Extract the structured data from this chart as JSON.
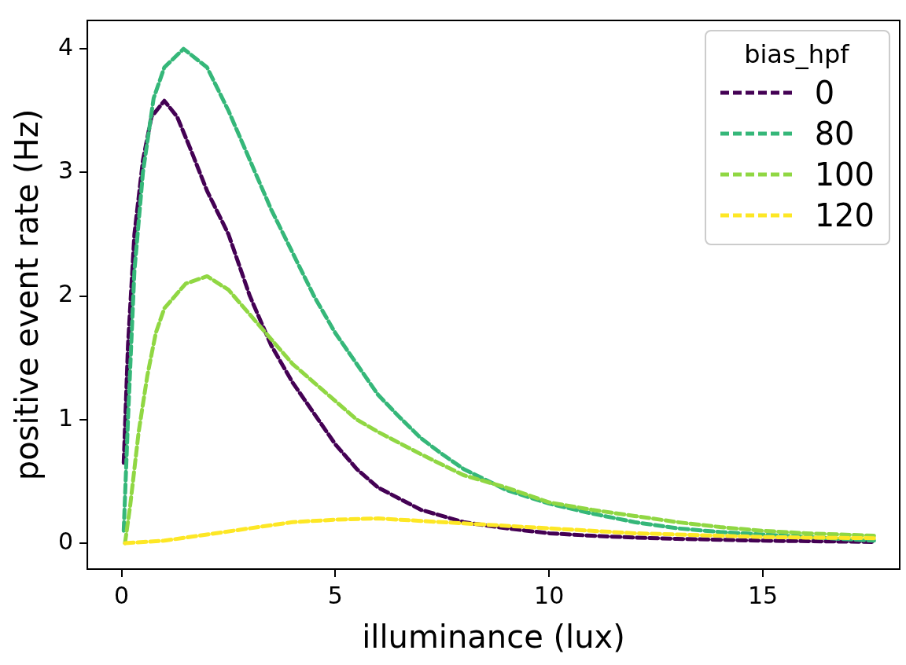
{
  "chart_data": {
    "type": "line",
    "xlabel": "illuminance (lux)",
    "ylabel": "positive event rate (Hz)",
    "legend_title": "bias_hpf",
    "legend": "top right",
    "grid": false,
    "marker": "none",
    "line_style": "dashed",
    "xlim": [
      -0.8,
      18.2
    ],
    "xticks": [
      0,
      5,
      10,
      15
    ],
    "ylim": [
      -0.21,
      4.23
    ],
    "yticks": [
      0,
      1,
      2,
      3,
      4
    ],
    "series": [
      {
        "name": "0",
        "color": "#440154",
        "x": [
          0.05,
          0.15,
          0.3,
          0.5,
          0.7,
          1.0,
          1.3,
          1.6,
          2.0,
          2.5,
          3.0,
          3.5,
          4.0,
          4.5,
          5.0,
          5.5,
          6.0,
          6.5,
          7.0,
          8.0,
          9.0,
          10,
          11,
          12,
          13,
          15,
          17.6
        ],
        "values": [
          0.65,
          1.6,
          2.5,
          3.1,
          3.45,
          3.58,
          3.45,
          3.2,
          2.85,
          2.5,
          2.0,
          1.6,
          1.3,
          1.05,
          0.8,
          0.6,
          0.45,
          0.36,
          0.27,
          0.17,
          0.12,
          0.08,
          0.06,
          0.045,
          0.035,
          0.02,
          0.01
        ]
      },
      {
        "name": "80",
        "color": "#35b779",
        "x": [
          0.05,
          0.15,
          0.3,
          0.5,
          0.75,
          1.0,
          1.45,
          2,
          2.5,
          3,
          3.5,
          4,
          4.5,
          5,
          5.5,
          6,
          6.5,
          7,
          7.5,
          8,
          9,
          10,
          11,
          12,
          13,
          14,
          15,
          16,
          17.6
        ],
        "values": [
          0.1,
          1.0,
          2.2,
          3.0,
          3.6,
          3.85,
          4.0,
          3.85,
          3.5,
          3.1,
          2.7,
          2.35,
          2.0,
          1.7,
          1.45,
          1.2,
          1.02,
          0.85,
          0.72,
          0.6,
          0.43,
          0.32,
          0.24,
          0.17,
          0.12,
          0.09,
          0.07,
          0.05,
          0.02
        ]
      },
      {
        "name": "100",
        "color": "#90d743",
        "x": [
          0.08,
          0.2,
          0.4,
          0.6,
          0.8,
          1.0,
          1.5,
          2.0,
          2.5,
          3,
          3.5,
          4,
          4.5,
          5,
          5.5,
          6,
          7,
          8,
          9,
          10,
          11,
          12,
          13,
          14,
          15,
          16,
          17.6
        ],
        "values": [
          0.0,
          0.3,
          0.9,
          1.35,
          1.7,
          1.9,
          2.1,
          2.16,
          2.05,
          1.85,
          1.65,
          1.45,
          1.3,
          1.15,
          1.0,
          0.9,
          0.72,
          0.55,
          0.45,
          0.33,
          0.27,
          0.22,
          0.17,
          0.13,
          0.1,
          0.08,
          0.06
        ]
      },
      {
        "name": "120",
        "color": "#fde725",
        "x": [
          0.08,
          1,
          2,
          3,
          4,
          5,
          6,
          7,
          8,
          9,
          10,
          11,
          12,
          13,
          14,
          15,
          16,
          17.6
        ],
        "values": [
          0.0,
          0.02,
          0.07,
          0.12,
          0.17,
          0.19,
          0.2,
          0.18,
          0.16,
          0.14,
          0.12,
          0.1,
          0.08,
          0.07,
          0.06,
          0.05,
          0.045,
          0.04
        ]
      }
    ]
  }
}
